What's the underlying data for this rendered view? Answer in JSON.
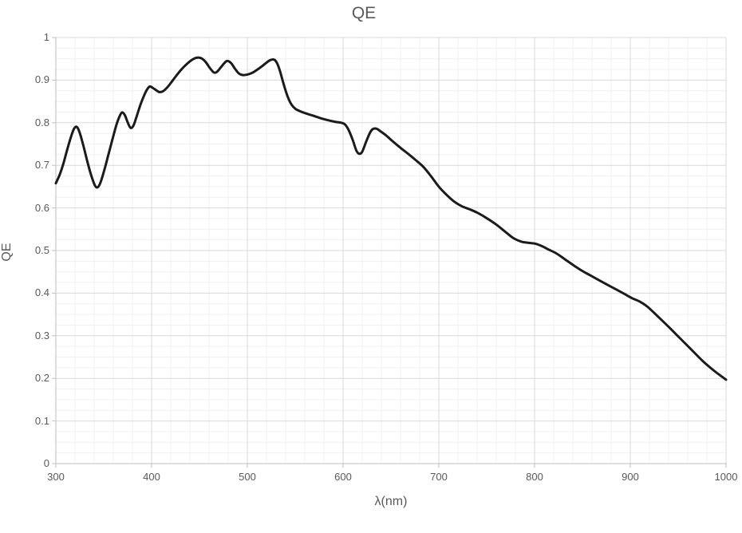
{
  "chart_data": {
    "type": "line",
    "title": "QE",
    "legend": "none",
    "grid": "major+minor",
    "colors": {
      "curve": "#1b1b1b",
      "major_grid": "#d9d9d9",
      "minor_grid": "#f0f0f0",
      "axis_line": "#bfbfbf",
      "text": "#595959"
    },
    "x_axis": {
      "label": "λ(nm)",
      "min": 300,
      "max": 1000,
      "tick_values": [
        300,
        400,
        500,
        600,
        700,
        800,
        900,
        1000
      ],
      "tick_labels": [
        "300",
        "400",
        "500",
        "600",
        "700",
        "800",
        "900",
        "1000"
      ],
      "minor_step": 20
    },
    "y_axis": {
      "label": "QE",
      "min": 0,
      "max": 1,
      "tick_values": [
        0,
        0.1,
        0.2,
        0.3,
        0.4,
        0.5,
        0.6,
        0.7,
        0.8,
        0.9,
        1
      ],
      "tick_labels": [
        "0",
        "0.1",
        "0.2",
        "0.3",
        "0.4",
        "0.5",
        "0.6",
        "0.7",
        "0.8",
        "0.9",
        "1"
      ],
      "minor_step": 0.025
    },
    "series": [
      {
        "name": "QE",
        "points": [
          [
            300,
            0.658
          ],
          [
            304,
            0.678
          ],
          [
            308,
            0.705
          ],
          [
            312,
            0.738
          ],
          [
            316,
            0.768
          ],
          [
            319,
            0.786
          ],
          [
            322,
            0.79
          ],
          [
            325,
            0.776
          ],
          [
            329,
            0.744
          ],
          [
            333,
            0.708
          ],
          [
            337,
            0.676
          ],
          [
            341,
            0.652
          ],
          [
            344,
            0.649
          ],
          [
            347,
            0.662
          ],
          [
            351,
            0.692
          ],
          [
            355,
            0.726
          ],
          [
            359,
            0.76
          ],
          [
            363,
            0.793
          ],
          [
            366,
            0.812
          ],
          [
            369,
            0.824
          ],
          [
            372,
            0.818
          ],
          [
            375,
            0.801
          ],
          [
            378,
            0.788
          ],
          [
            381,
            0.793
          ],
          [
            384,
            0.812
          ],
          [
            388,
            0.84
          ],
          [
            392,
            0.863
          ],
          [
            395,
            0.877
          ],
          [
            398,
            0.885
          ],
          [
            401,
            0.882
          ],
          [
            405,
            0.876
          ],
          [
            408,
            0.872
          ],
          [
            412,
            0.874
          ],
          [
            416,
            0.882
          ],
          [
            420,
            0.893
          ],
          [
            425,
            0.908
          ],
          [
            430,
            0.922
          ],
          [
            435,
            0.934
          ],
          [
            440,
            0.944
          ],
          [
            445,
            0.951
          ],
          [
            449,
            0.953
          ],
          [
            453,
            0.95
          ],
          [
            457,
            0.941
          ],
          [
            461,
            0.928
          ],
          [
            465,
            0.918
          ],
          [
            468,
            0.919
          ],
          [
            472,
            0.929
          ],
          [
            476,
            0.94
          ],
          [
            479,
            0.945
          ],
          [
            483,
            0.94
          ],
          [
            487,
            0.927
          ],
          [
            491,
            0.916
          ],
          [
            495,
            0.912
          ],
          [
            500,
            0.913
          ],
          [
            505,
            0.917
          ],
          [
            510,
            0.924
          ],
          [
            515,
            0.932
          ],
          [
            520,
            0.941
          ],
          [
            524,
            0.947
          ],
          [
            528,
            0.948
          ],
          [
            531,
            0.94
          ],
          [
            534,
            0.922
          ],
          [
            538,
            0.89
          ],
          [
            542,
            0.862
          ],
          [
            546,
            0.843
          ],
          [
            550,
            0.833
          ],
          [
            555,
            0.827
          ],
          [
            561,
            0.822
          ],
          [
            568,
            0.817
          ],
          [
            576,
            0.811
          ],
          [
            584,
            0.806
          ],
          [
            592,
            0.802
          ],
          [
            598,
            0.8
          ],
          [
            602,
            0.796
          ],
          [
            606,
            0.782
          ],
          [
            610,
            0.76
          ],
          [
            614,
            0.734
          ],
          [
            617,
            0.727
          ],
          [
            620,
            0.732
          ],
          [
            624,
            0.755
          ],
          [
            628,
            0.776
          ],
          [
            631,
            0.785
          ],
          [
            635,
            0.786
          ],
          [
            639,
            0.78
          ],
          [
            645,
            0.77
          ],
          [
            652,
            0.756
          ],
          [
            660,
            0.741
          ],
          [
            668,
            0.727
          ],
          [
            676,
            0.712
          ],
          [
            684,
            0.696
          ],
          [
            692,
            0.674
          ],
          [
            700,
            0.65
          ],
          [
            708,
            0.631
          ],
          [
            716,
            0.615
          ],
          [
            724,
            0.604
          ],
          [
            732,
            0.597
          ],
          [
            740,
            0.589
          ],
          [
            750,
            0.576
          ],
          [
            760,
            0.561
          ],
          [
            770,
            0.543
          ],
          [
            778,
            0.529
          ],
          [
            786,
            0.521
          ],
          [
            794,
            0.518
          ],
          [
            801,
            0.516
          ],
          [
            808,
            0.51
          ],
          [
            815,
            0.502
          ],
          [
            823,
            0.493
          ],
          [
            832,
            0.479
          ],
          [
            841,
            0.465
          ],
          [
            850,
            0.452
          ],
          [
            858,
            0.442
          ],
          [
            866,
            0.432
          ],
          [
            875,
            0.421
          ],
          [
            885,
            0.409
          ],
          [
            894,
            0.398
          ],
          [
            902,
            0.388
          ],
          [
            910,
            0.38
          ],
          [
            918,
            0.368
          ],
          [
            928,
            0.347
          ],
          [
            940,
            0.321
          ],
          [
            952,
            0.294
          ],
          [
            964,
            0.267
          ],
          [
            976,
            0.24
          ],
          [
            988,
            0.217
          ],
          [
            1000,
            0.197
          ]
        ]
      }
    ]
  }
}
